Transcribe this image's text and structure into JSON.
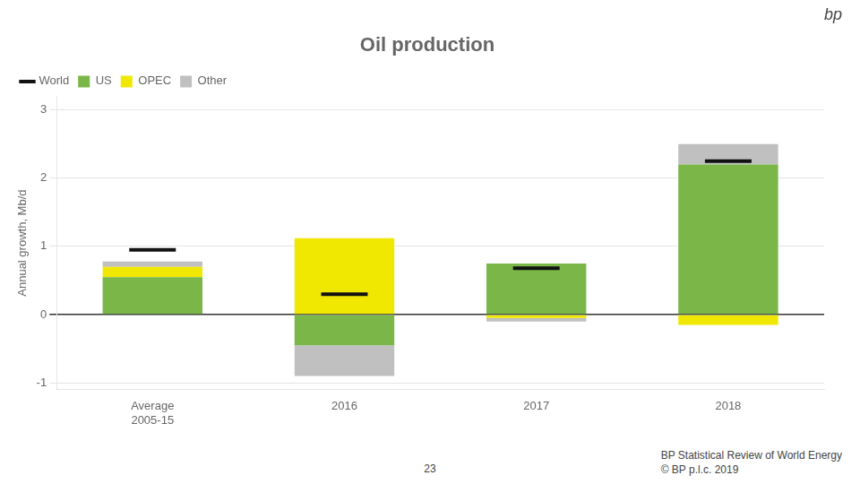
{
  "chart_data": {
    "type": "bar",
    "title": "Oil production",
    "ylabel": "Annual growth, Mb/d",
    "categories": [
      "Average\n2005-15",
      "2016",
      "2017",
      "2018"
    ],
    "series": [
      {
        "name": "US",
        "color": "#7AB648",
        "values": [
          0.55,
          -0.45,
          0.75,
          2.2
        ]
      },
      {
        "name": "OPEC",
        "color": "#F0E800",
        "values": [
          0.15,
          1.12,
          -0.05,
          -0.15
        ]
      },
      {
        "name": "Other",
        "color": "#C0C0C0",
        "values": [
          0.08,
          -0.45,
          -0.05,
          0.3
        ]
      },
      {
        "name": "World",
        "type": "line",
        "line_style": "none",
        "marker": "line",
        "color": "#111111",
        "values": [
          0.95,
          0.3,
          0.68,
          2.25
        ]
      }
    ],
    "stacked": true,
    "ylim": [
      -1.1,
      3.2
    ],
    "yticks": [
      -1,
      0,
      1,
      2,
      3
    ],
    "grid": true,
    "legend": "upper left",
    "annotations": [
      "BP Statistical Review of World Energy",
      "© BP p.l.c. 2019",
      "23",
      "bp"
    ]
  }
}
